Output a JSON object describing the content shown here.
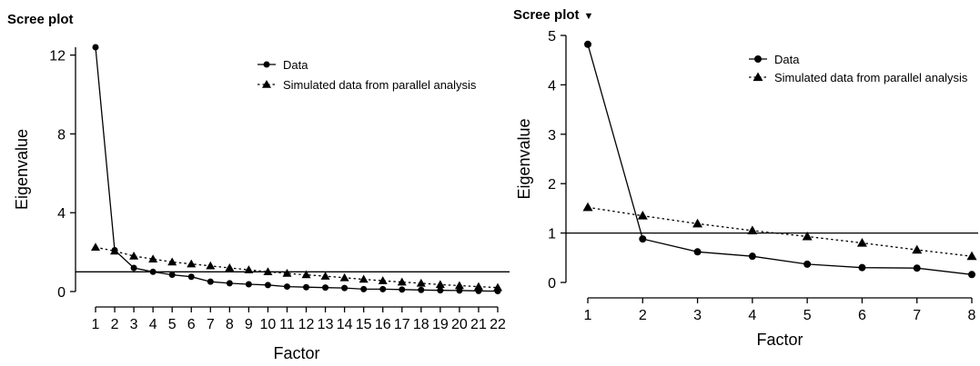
{
  "chart_data": [
    {
      "type": "line",
      "title": "Scree plot",
      "xlabel": "Factor",
      "ylabel": "Eigenvalue",
      "x": [
        1,
        2,
        3,
        4,
        5,
        6,
        7,
        8,
        9,
        10,
        11,
        12,
        13,
        14,
        15,
        16,
        17,
        18,
        19,
        20,
        21,
        22
      ],
      "xticks": [
        "1",
        "2",
        "3",
        "4",
        "5",
        "6",
        "7",
        "8",
        "9",
        "10",
        "11",
        "12",
        "13",
        "14",
        "15",
        "16",
        "17",
        "18",
        "19",
        "20",
        "21",
        "22"
      ],
      "yticks": [
        "0",
        "4",
        "8",
        "12"
      ],
      "ylim": [
        0,
        12.4
      ],
      "reference_line": 1,
      "legend_position": "top-right",
      "series": [
        {
          "name": "Data",
          "marker": "circle",
          "line": "solid",
          "values": [
            12.4,
            2.1,
            1.2,
            1.0,
            0.85,
            0.75,
            0.5,
            0.42,
            0.37,
            0.33,
            0.25,
            0.22,
            0.2,
            0.18,
            0.12,
            0.12,
            0.1,
            0.08,
            0.06,
            0.05,
            0.03,
            0.02
          ]
        },
        {
          "name": "Simulated data from parallel analysis",
          "marker": "triangle",
          "line": "dotted",
          "values": [
            2.25,
            2.05,
            1.8,
            1.65,
            1.5,
            1.4,
            1.3,
            1.2,
            1.1,
            1.0,
            0.92,
            0.85,
            0.78,
            0.7,
            0.62,
            0.55,
            0.48,
            0.42,
            0.35,
            0.3,
            0.25,
            0.2
          ]
        }
      ]
    },
    {
      "type": "line",
      "title": "Scree plot",
      "caret": "▼",
      "xlabel": "Factor",
      "ylabel": "Eigenvalue",
      "x": [
        1,
        2,
        3,
        4,
        5,
        6,
        7,
        8
      ],
      "xticks": [
        "1",
        "2",
        "3",
        "4",
        "5",
        "6",
        "7",
        "8"
      ],
      "yticks": [
        "0",
        "1",
        "2",
        "3",
        "4",
        "5"
      ],
      "ylim": [
        0,
        5
      ],
      "reference_line": 1,
      "legend_position": "top-right",
      "series": [
        {
          "name": "Data",
          "marker": "circle",
          "line": "solid",
          "values": [
            4.82,
            0.88,
            0.62,
            0.53,
            0.37,
            0.3,
            0.29,
            0.16
          ]
        },
        {
          "name": "Simulated data from parallel analysis",
          "marker": "triangle",
          "line": "dotted",
          "values": [
            1.52,
            1.35,
            1.19,
            1.05,
            0.93,
            0.8,
            0.66,
            0.53
          ]
        }
      ]
    }
  ]
}
